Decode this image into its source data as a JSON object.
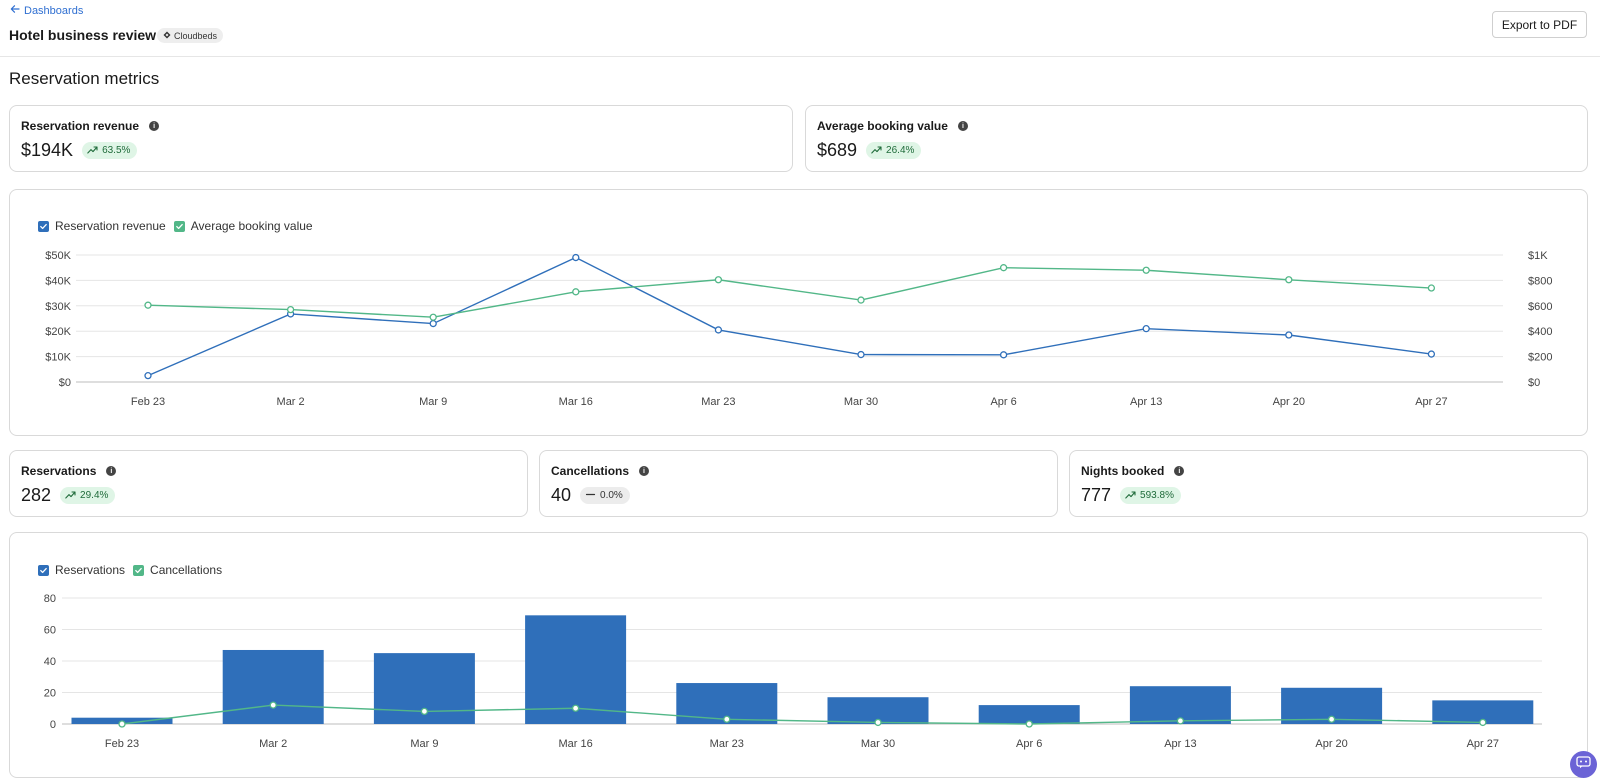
{
  "header": {
    "back_label": "Dashboards",
    "title": "Hotel business review",
    "source_badge": "Cloudbeds",
    "export_label": "Export to PDF"
  },
  "section_title": "Reservation metrics",
  "kpis": {
    "revenue": {
      "label": "Reservation revenue",
      "value": "$194K",
      "delta": "63.5%",
      "trend": "up"
    },
    "booking_value": {
      "label": "Average booking value",
      "value": "$689",
      "delta": "26.4%",
      "trend": "up"
    },
    "reservations": {
      "label": "Reservations",
      "value": "282",
      "delta": "29.4%",
      "trend": "up"
    },
    "cancellations": {
      "label": "Cancellations",
      "value": "40",
      "delta": "0.0%",
      "trend": "flat"
    },
    "nights": {
      "label": "Nights booked",
      "value": "777",
      "delta": "593.8%",
      "trend": "up"
    }
  },
  "colors": {
    "blue": "#2f6fba",
    "green": "#52b788",
    "grid": "#e5e5e5"
  },
  "chart_data": [
    {
      "type": "line",
      "x": [
        "Feb 23",
        "Mar 2",
        "Mar 9",
        "Mar 16",
        "Mar 23",
        "Mar 30",
        "Apr 6",
        "Apr 13",
        "Apr 20",
        "Apr 27"
      ],
      "left_axis": {
        "ticks": [
          "$0",
          "$10K",
          "$20K",
          "$30K",
          "$40K",
          "$50K"
        ],
        "ylim": [
          0,
          50000
        ]
      },
      "right_axis": {
        "ticks": [
          "$0",
          "$200",
          "$400",
          "$600",
          "$800",
          "$1K"
        ],
        "ylim": [
          0,
          1000
        ]
      },
      "series": [
        {
          "name": "Reservation revenue",
          "axis": "left",
          "color": "#2f6fba",
          "values": [
            2500,
            26800,
            23000,
            49000,
            20500,
            10800,
            10700,
            21000,
            18500,
            11000
          ]
        },
        {
          "name": "Average booking value",
          "axis": "right",
          "color": "#52b788",
          "values": [
            605,
            570,
            510,
            710,
            805,
            645,
            900,
            880,
            805,
            740
          ]
        }
      ],
      "legend": "top-left",
      "grid": true
    },
    {
      "type": "bar",
      "x": [
        "Feb 23",
        "Mar 2",
        "Mar 9",
        "Mar 16",
        "Mar 23",
        "Mar 30",
        "Apr 6",
        "Apr 13",
        "Apr 20",
        "Apr 27"
      ],
      "axis": {
        "ticks": [
          "0",
          "20",
          "40",
          "60",
          "80"
        ],
        "ylim": [
          0,
          80
        ]
      },
      "series": [
        {
          "name": "Reservations",
          "kind": "bar",
          "color": "#2f6fba",
          "values": [
            4,
            47,
            45,
            69,
            26,
            17,
            12,
            24,
            23,
            15
          ]
        },
        {
          "name": "Cancellations",
          "kind": "line",
          "color": "#52b788",
          "values": [
            0,
            12,
            8,
            10,
            3,
            1,
            0,
            2,
            3,
            1
          ]
        }
      ],
      "legend": "top-left",
      "grid": true
    }
  ]
}
